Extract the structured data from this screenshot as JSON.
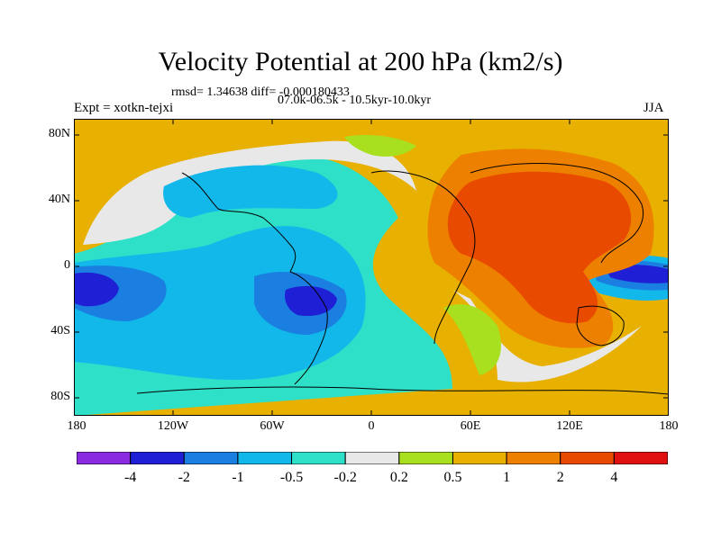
{
  "header": {
    "title": "Velocity Potential at 200 hPa (km2/s)",
    "stats": "rmsd= 1.34638  diff= -0.000180433",
    "period": "07.0k-06.5k - 10.5kyr-10.0kyr",
    "experiment": "Expt = xotkn-tejxi",
    "season": "JJA"
  },
  "axes": {
    "lat_labels": [
      "80N",
      "40N",
      "0",
      "40S",
      "80S"
    ],
    "lon_labels": [
      "180",
      "120W",
      "60W",
      "0",
      "60E",
      "120E",
      "180"
    ]
  },
  "colorbar": {
    "labels": [
      "-4",
      "-2",
      "-1",
      "-0.5",
      "-0.2",
      "0.2",
      "0.5",
      "1",
      "2",
      "4"
    ],
    "colors": [
      "#8a2be2",
      "#1f1fd6",
      "#1a7fe0",
      "#12b8ea",
      "#2ee0c8",
      "#e8e8e8",
      "#a8e020",
      "#e8b000",
      "#ee8000",
      "#e84a00",
      "#e01010"
    ]
  },
  "map": {
    "colors": {
      "ocean_band": "#e8b000",
      "positive_high": "#ee8000",
      "positive_max": "#e84a00",
      "neutral": "#e8e8e8",
      "weak_pos": "#a8e020",
      "weak_neg": "#2ee0c8",
      "neg1": "#12b8ea",
      "neg2": "#1a7fe0",
      "neg3": "#1f1fd6"
    }
  }
}
